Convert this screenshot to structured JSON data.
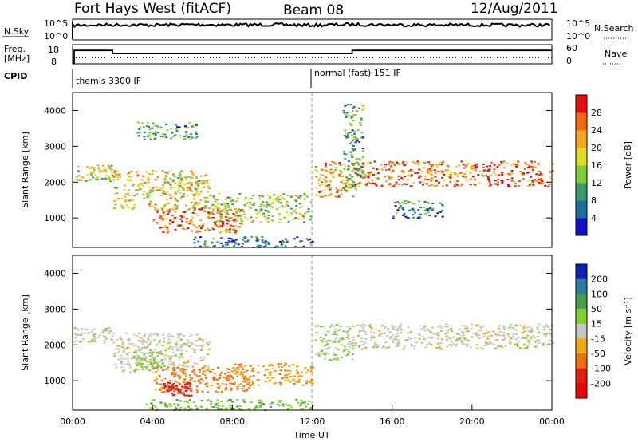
{
  "header": {
    "station": "Fort Hays West (fitACF)",
    "beam": "Beam 08",
    "date": "12/Aug/2011"
  },
  "noise_panel": {
    "left_label": "N.Sky",
    "left_ticks": [
      "10^5",
      "10^0"
    ],
    "right_ticks": [
      "10^5",
      "10^0"
    ],
    "right_label": "N.Search"
  },
  "freq_panel": {
    "left_label_line1": "Freq.",
    "left_label_line2": "[MHz]",
    "left_ticks": [
      "18",
      "8"
    ],
    "right_ticks": [
      "60",
      "0"
    ],
    "right_label": "Nave"
  },
  "cpid_panel": {
    "label": "CPID",
    "segments": [
      {
        "text": "themis 3300 IF",
        "start_hour": 0
      },
      {
        "text": "normal (fast) 151 IF",
        "start_hour": 12
      }
    ]
  },
  "time_axis": {
    "label": "Time UT",
    "ticks": [
      "00:00",
      "04:00",
      "08:00",
      "12:00",
      "16:00",
      "20:00",
      "00:00"
    ]
  },
  "range_axis": {
    "label": "Slant Range [km]",
    "ticks": [
      "1000",
      "2000",
      "3000",
      "4000"
    ]
  },
  "power_colorbar": {
    "label": "Power [dB]",
    "ticks": [
      "4",
      "8",
      "12",
      "16",
      "20",
      "24",
      "28"
    ],
    "colors": [
      "#1010c8",
      "#1e6e9a",
      "#3a9a6a",
      "#7fcc3a",
      "#dede2a",
      "#f5a61e",
      "#f06a10",
      "#e01010"
    ]
  },
  "velocity_colorbar": {
    "label": "Velocity [m s⁻¹]",
    "ticks": [
      "200",
      "100",
      "50",
      "15",
      "-15",
      "-50",
      "-100",
      "-200"
    ],
    "colors": [
      "#1020b0",
      "#2e7ca0",
      "#4aa04a",
      "#7fd030",
      "#c8c8c0",
      "#f0a818",
      "#f07010",
      "#e02010",
      "#e00808"
    ]
  },
  "chart_data": [
    {
      "type": "line",
      "title": "N.Sky / N.Search",
      "x_unit": "hours UT",
      "xlim": [
        0,
        24
      ],
      "y_scale": "log",
      "ylim": [
        1,
        100000
      ],
      "series": [
        {
          "name": "N.Sky",
          "x": [
            0,
            2,
            4,
            6,
            8,
            10,
            12,
            14,
            16,
            18,
            20,
            22,
            24
          ],
          "y": [
            8000,
            12000,
            10000,
            14000,
            11000,
            13000,
            9000,
            15000,
            12000,
            10000,
            11000,
            9000,
            10000
          ]
        },
        {
          "name": "N.Search",
          "x": [
            0,
            24
          ],
          "y": [
            1,
            1
          ]
        }
      ]
    },
    {
      "type": "line",
      "title": "Freq / Nave",
      "x_unit": "hours UT",
      "xlim": [
        0,
        24
      ],
      "ylim": [
        8,
        18
      ],
      "y2lim": [
        0,
        60
      ],
      "series": [
        {
          "name": "Freq.",
          "x": [
            0,
            0.08,
            0.08,
            2.0,
            2.0,
            14.0,
            14.0,
            24
          ],
          "y": [
            8,
            8,
            15.2,
            15.2,
            13.4,
            13.4,
            15.2,
            15.2
          ]
        },
        {
          "name": "Nave",
          "x": [
            0,
            24
          ],
          "y": [
            18,
            18
          ]
        }
      ]
    },
    {
      "type": "heatmap",
      "title": "Power [dB]",
      "xlabel": "Time UT",
      "ylabel": "Slant Range [km]",
      "xlim": [
        0,
        24
      ],
      "ylim": [
        180,
        4500
      ],
      "zlim": [
        0,
        30
      ],
      "features": [
        {
          "x": [
            0.0,
            2.0
          ],
          "y": [
            2050,
            2500
          ],
          "z": 16
        },
        {
          "x": [
            2.0,
            6.8
          ],
          "y": [
            1250,
            2350
          ],
          "z": 18
        },
        {
          "x": [
            3.2,
            6.2
          ],
          "y": [
            3200,
            3700
          ],
          "z": 10
        },
        {
          "x": [
            4.0,
            8.5
          ],
          "y": [
            600,
            1300
          ],
          "z": 24
        },
        {
          "x": [
            6.8,
            11.9
          ],
          "y": [
            900,
            1700
          ],
          "z": 14
        },
        {
          "x": [
            12.1,
            14.0
          ],
          "y": [
            1600,
            2600
          ],
          "z": 20
        },
        {
          "x": [
            14.0,
            24.0
          ],
          "y": [
            1900,
            2600
          ],
          "z": 24
        },
        {
          "x": [
            13.5,
            14.5
          ],
          "y": [
            1800,
            4200
          ],
          "z": 10
        },
        {
          "x": [
            6.0,
            12.0
          ],
          "y": [
            200,
            500
          ],
          "z": 6
        },
        {
          "x": [
            16.0,
            18.5
          ],
          "y": [
            1000,
            1500
          ],
          "z": 8
        }
      ]
    },
    {
      "type": "heatmap",
      "title": "Velocity [m s-1]",
      "xlabel": "Time UT",
      "ylabel": "Slant Range [km]",
      "xlim": [
        0,
        24
      ],
      "ylim": [
        180,
        4500
      ],
      "zlim": [
        -200,
        200
      ],
      "features": [
        {
          "x": [
            0.0,
            2.0
          ],
          "y": [
            2050,
            2500
          ],
          "z": 0
        },
        {
          "x": [
            2.0,
            6.8
          ],
          "y": [
            1250,
            2350
          ],
          "z": 0
        },
        {
          "x": [
            3.0,
            4.5
          ],
          "y": [
            1300,
            1900
          ],
          "z": 30
        },
        {
          "x": [
            4.0,
            9.0
          ],
          "y": [
            700,
            1400
          ],
          "z": -60
        },
        {
          "x": [
            4.5,
            6.0
          ],
          "y": [
            600,
            1000
          ],
          "z": -180
        },
        {
          "x": [
            8.0,
            12.0
          ],
          "y": [
            900,
            1500
          ],
          "z": -40
        },
        {
          "x": [
            12.1,
            14.0
          ],
          "y": [
            1600,
            2600
          ],
          "z": 15
        },
        {
          "x": [
            14.0,
            24.0
          ],
          "y": [
            1900,
            2600
          ],
          "z": 0
        },
        {
          "x": [
            3.5,
            12.0
          ],
          "y": [
            200,
            500
          ],
          "z": 40
        }
      ]
    }
  ]
}
